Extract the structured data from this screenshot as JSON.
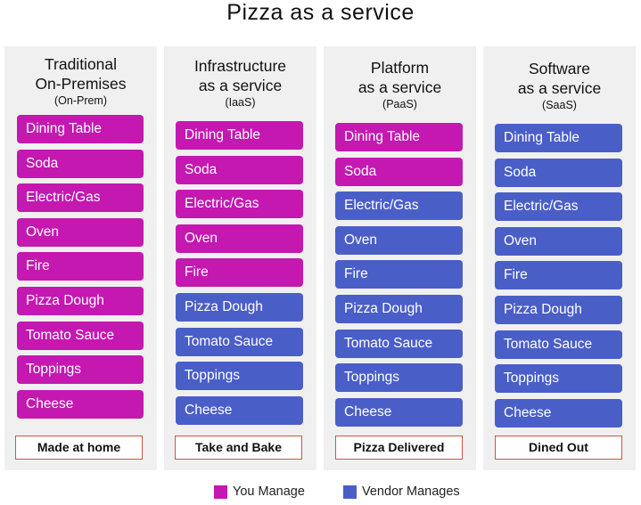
{
  "title": "Pizza as a service",
  "colors": {
    "you_manage": "#c418b0",
    "vendor_manages": "#4a5ec8"
  },
  "columns": [
    {
      "title_lines": [
        "Traditional",
        "On-Premises"
      ],
      "abbreviation": "(On-Prem)",
      "footer": "Made at home",
      "items": [
        {
          "label": "Dining Table",
          "managed_by": "you"
        },
        {
          "label": "Soda",
          "managed_by": "you"
        },
        {
          "label": "Electric/Gas",
          "managed_by": "you"
        },
        {
          "label": "Oven",
          "managed_by": "you"
        },
        {
          "label": "Fire",
          "managed_by": "you"
        },
        {
          "label": "Pizza Dough",
          "managed_by": "you"
        },
        {
          "label": "Tomato Sauce",
          "managed_by": "you"
        },
        {
          "label": "Toppings",
          "managed_by": "you"
        },
        {
          "label": "Cheese",
          "managed_by": "you"
        }
      ]
    },
    {
      "title_lines": [
        "Infrastructure",
        "as a service"
      ],
      "abbreviation": "(IaaS)",
      "footer": "Take and Bake",
      "items": [
        {
          "label": "Dining Table",
          "managed_by": "you"
        },
        {
          "label": "Soda",
          "managed_by": "you"
        },
        {
          "label": "Electric/Gas",
          "managed_by": "you"
        },
        {
          "label": "Oven",
          "managed_by": "you"
        },
        {
          "label": "Fire",
          "managed_by": "you"
        },
        {
          "label": "Pizza Dough",
          "managed_by": "vendor"
        },
        {
          "label": "Tomato Sauce",
          "managed_by": "vendor"
        },
        {
          "label": "Toppings",
          "managed_by": "vendor"
        },
        {
          "label": "Cheese",
          "managed_by": "vendor"
        }
      ]
    },
    {
      "title_lines": [
        "Platform",
        "as a service"
      ],
      "abbreviation": "(PaaS)",
      "footer": "Pizza Delivered",
      "items": [
        {
          "label": "Dining Table",
          "managed_by": "you"
        },
        {
          "label": "Soda",
          "managed_by": "you"
        },
        {
          "label": "Electric/Gas",
          "managed_by": "vendor"
        },
        {
          "label": "Oven",
          "managed_by": "vendor"
        },
        {
          "label": "Fire",
          "managed_by": "vendor"
        },
        {
          "label": "Pizza Dough",
          "managed_by": "vendor"
        },
        {
          "label": "Tomato Sauce",
          "managed_by": "vendor"
        },
        {
          "label": "Toppings",
          "managed_by": "vendor"
        },
        {
          "label": "Cheese",
          "managed_by": "vendor"
        }
      ]
    },
    {
      "title_lines": [
        "Software",
        "as a service"
      ],
      "abbreviation": "(SaaS)",
      "footer": "Dined Out",
      "items": [
        {
          "label": "Dining Table",
          "managed_by": "vendor"
        },
        {
          "label": "Soda",
          "managed_by": "vendor"
        },
        {
          "label": "Electric/Gas",
          "managed_by": "vendor"
        },
        {
          "label": "Oven",
          "managed_by": "vendor"
        },
        {
          "label": "Fire",
          "managed_by": "vendor"
        },
        {
          "label": "Pizza Dough",
          "managed_by": "vendor"
        },
        {
          "label": "Tomato Sauce",
          "managed_by": "vendor"
        },
        {
          "label": "Toppings",
          "managed_by": "vendor"
        },
        {
          "label": "Cheese",
          "managed_by": "vendor"
        }
      ]
    }
  ],
  "legend": {
    "you_manage": "You Manage",
    "vendor_manages": "Vendor Manages"
  }
}
